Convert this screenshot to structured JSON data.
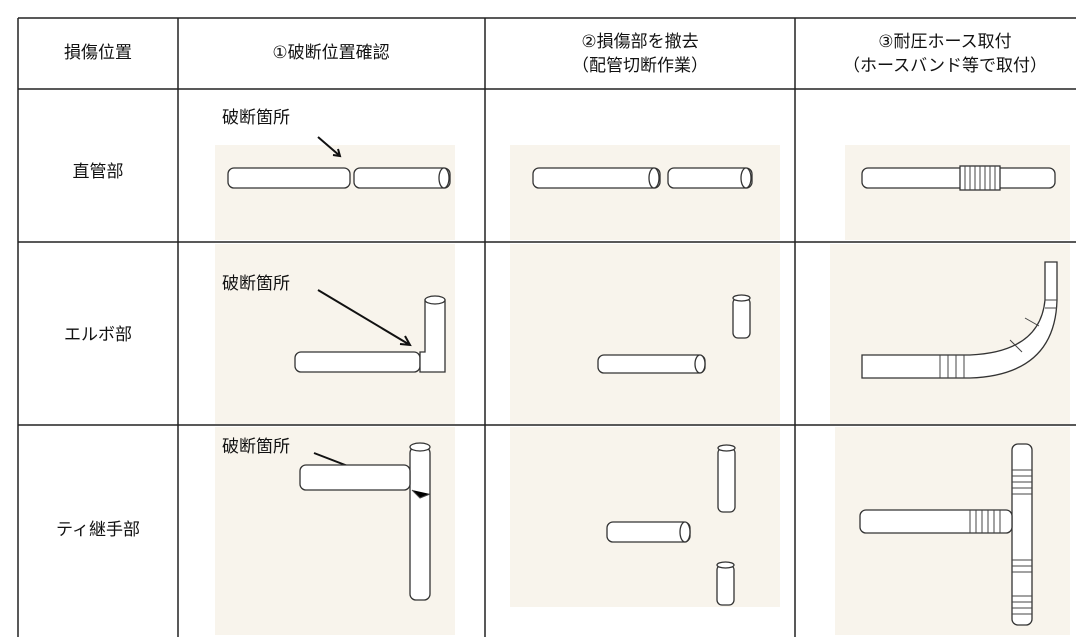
{
  "table": {
    "header": [
      [
        "損傷位置"
      ],
      [
        "①破断位置確認"
      ],
      [
        "②損傷部を撤去",
        "（配管切断作業）"
      ],
      [
        "③耐圧ホース取付",
        "（ホースバンド等で取付）"
      ]
    ],
    "rows": [
      {
        "label": "直管部",
        "annotation": "破断箇所"
      },
      {
        "label": "エルボ部",
        "annotation": "破断箇所"
      },
      {
        "label": "ティ継手部",
        "annotation": "破断箇所"
      }
    ]
  }
}
